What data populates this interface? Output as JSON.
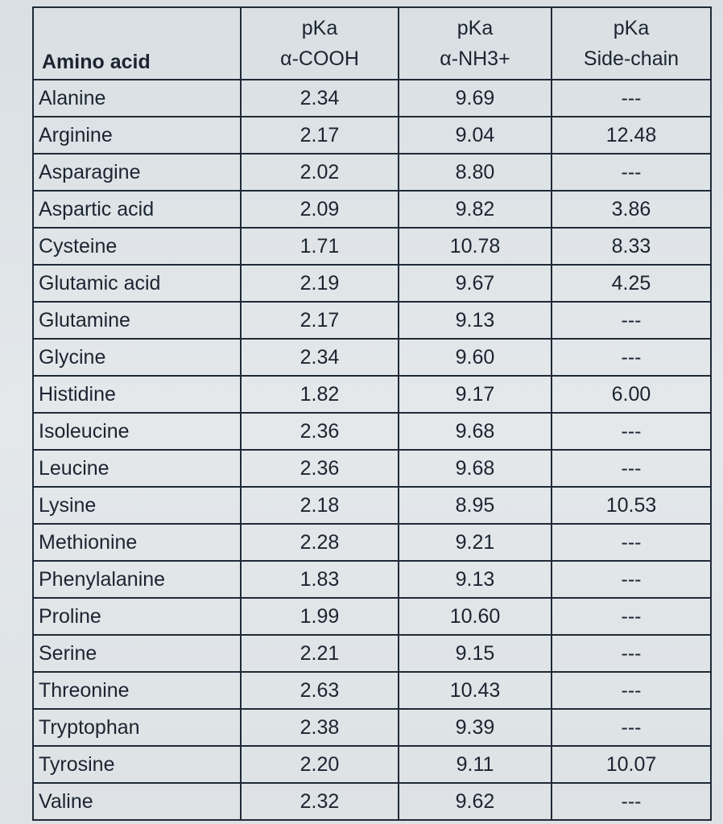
{
  "table": {
    "headers": {
      "amino_acid": "Amino acid",
      "cooh_line1": "pKa",
      "cooh_line2": "α-COOH",
      "nh3_line1": "pKa",
      "nh3_line2": "α-NH3+",
      "side_line1": "pKa",
      "side_line2": "Side-chain"
    },
    "rows": [
      {
        "name": "Alanine",
        "cooh": "2.34",
        "nh3": "9.69",
        "side": "---"
      },
      {
        "name": "Arginine",
        "cooh": "2.17",
        "nh3": "9.04",
        "side": "12.48"
      },
      {
        "name": "Asparagine",
        "cooh": "2.02",
        "nh3": "8.80",
        "side": "---"
      },
      {
        "name": "Aspartic acid",
        "cooh": "2.09",
        "nh3": "9.82",
        "side": "3.86"
      },
      {
        "name": "Cysteine",
        "cooh": "1.71",
        "nh3": "10.78",
        "side": "8.33"
      },
      {
        "name": "Glutamic acid",
        "cooh": "2.19",
        "nh3": "9.67",
        "side": "4.25"
      },
      {
        "name": "Glutamine",
        "cooh": "2.17",
        "nh3": "9.13",
        "side": "---"
      },
      {
        "name": "Glycine",
        "cooh": "2.34",
        "nh3": "9.60",
        "side": "---"
      },
      {
        "name": "Histidine",
        "cooh": "1.82",
        "nh3": "9.17",
        "side": "6.00"
      },
      {
        "name": "Isoleucine",
        "cooh": "2.36",
        "nh3": "9.68",
        "side": "---"
      },
      {
        "name": "Leucine",
        "cooh": "2.36",
        "nh3": "9.68",
        "side": "---"
      },
      {
        "name": "Lysine",
        "cooh": "2.18",
        "nh3": "8.95",
        "side": "10.53"
      },
      {
        "name": "Methionine",
        "cooh": "2.28",
        "nh3": "9.21",
        "side": "---"
      },
      {
        "name": "Phenylalanine",
        "cooh": "1.83",
        "nh3": "9.13",
        "side": "---"
      },
      {
        "name": "Proline",
        "cooh": "1.99",
        "nh3": "10.60",
        "side": "---"
      },
      {
        "name": "Serine",
        "cooh": "2.21",
        "nh3": "9.15",
        "side": "---"
      },
      {
        "name": "Threonine",
        "cooh": "2.63",
        "nh3": "10.43",
        "side": "---"
      },
      {
        "name": "Tryptophan",
        "cooh": "2.38",
        "nh3": "9.39",
        "side": "---"
      },
      {
        "name": "Tyrosine",
        "cooh": "2.20",
        "nh3": "9.11",
        "side": "10.07"
      },
      {
        "name": "Valine",
        "cooh": "2.32",
        "nh3": "9.62",
        "side": "---"
      }
    ]
  }
}
